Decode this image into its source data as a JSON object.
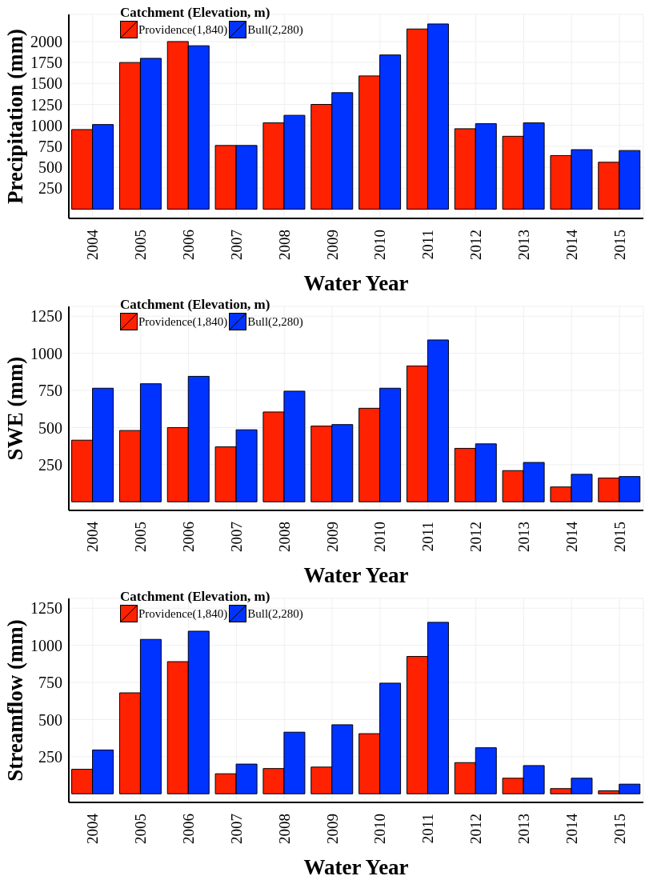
{
  "chart_data": [
    {
      "type": "bar",
      "xlabel": "Water Year",
      "ylabel": "Precipitation (mm)",
      "legend_title": "Catchment (Elevation, m)",
      "legend": "top left",
      "grid": true,
      "categories": [
        "2004",
        "2005",
        "2006",
        "2007",
        "2008",
        "2009",
        "2010",
        "2011",
        "2012",
        "2013",
        "2014",
        "2015"
      ],
      "ylim": [
        -110,
        2324
      ],
      "yticks": [
        250,
        500,
        750,
        1000,
        1250,
        1500,
        1750,
        2000
      ],
      "series": [
        {
          "name": "Providence(1,840)",
          "color": "#ff2200",
          "values": [
            950,
            1750,
            2000,
            760,
            1030,
            1250,
            1590,
            2150,
            960,
            870,
            640,
            560
          ]
        },
        {
          "name": "Bull(2,280)",
          "color": "#0033ff",
          "values": [
            1010,
            1800,
            1950,
            760,
            1120,
            1390,
            1840,
            2210,
            1020,
            1030,
            710,
            700
          ]
        }
      ]
    },
    {
      "type": "bar",
      "xlabel": "Water Year",
      "ylabel": "SWE (mm)",
      "legend_title": "Catchment (Elevation, m)",
      "legend": "top left",
      "grid": true,
      "categories": [
        "2004",
        "2005",
        "2006",
        "2007",
        "2008",
        "2009",
        "2010",
        "2011",
        "2012",
        "2013",
        "2014",
        "2015"
      ],
      "ylim": [
        -58,
        1316
      ],
      "yticks": [
        250,
        500,
        750,
        1000,
        1250
      ],
      "series": [
        {
          "name": "Providence(1,840)",
          "color": "#ff2200",
          "values": [
            415,
            480,
            500,
            370,
            605,
            510,
            630,
            915,
            360,
            210,
            100,
            160
          ]
        },
        {
          "name": "Bull(2,280)",
          "color": "#0033ff",
          "values": [
            765,
            795,
            845,
            485,
            745,
            520,
            765,
            1090,
            390,
            265,
            185,
            170
          ]
        }
      ]
    },
    {
      "type": "bar",
      "xlabel": "Water Year",
      "ylabel": "Streamflow (mm)",
      "legend_title": "Catchment (Elevation, m)",
      "legend": "top left",
      "grid": true,
      "categories": [
        "2004",
        "2005",
        "2006",
        "2007",
        "2008",
        "2009",
        "2010",
        "2011",
        "2012",
        "2013",
        "2014",
        "2015"
      ],
      "ylim": [
        -58,
        1316
      ],
      "yticks": [
        250,
        500,
        750,
        1000,
        1250
      ],
      "series": [
        {
          "name": "Providence(1,840)",
          "color": "#ff2200",
          "values": [
            165,
            680,
            890,
            135,
            170,
            180,
            405,
            925,
            210,
            105,
            35,
            20
          ]
        },
        {
          "name": "Bull(2,280)",
          "color": "#0033ff",
          "values": [
            295,
            1040,
            1095,
            200,
            415,
            465,
            745,
            1155,
            310,
            190,
            105,
            65
          ]
        }
      ]
    }
  ]
}
